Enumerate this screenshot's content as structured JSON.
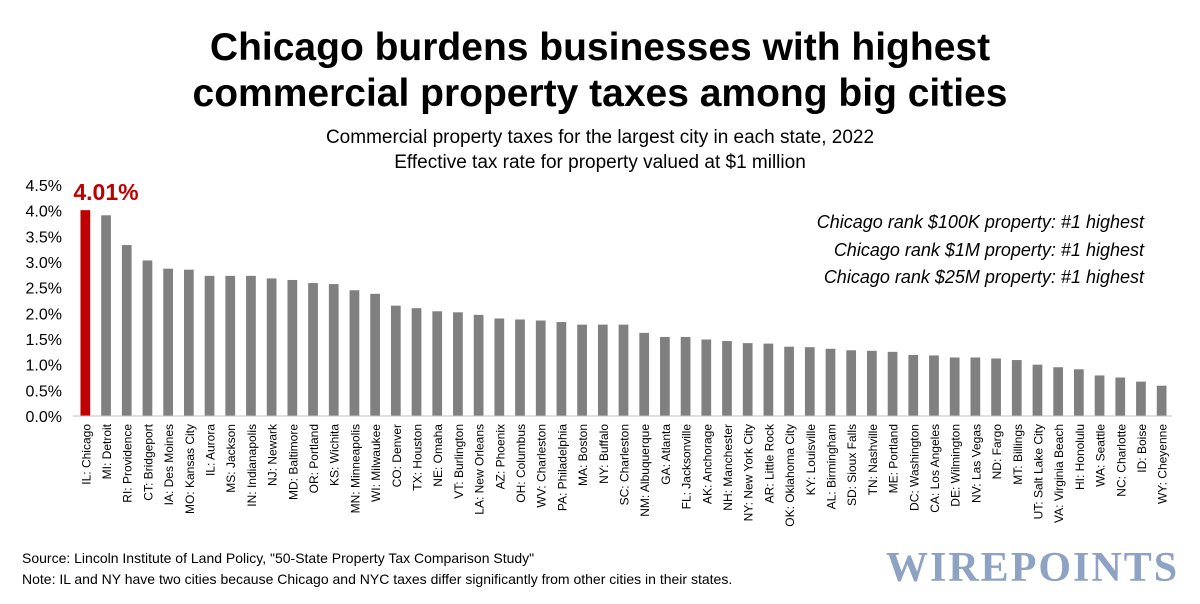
{
  "title_line1": "Chicago burdens businesses with highest",
  "title_line2": "commercial property taxes among big cities",
  "subtitle_line1": "Commercial property taxes for the largest city in each state, 2022",
  "subtitle_line2": "Effective tax rate for property valued at $1 million",
  "ranks": [
    "Chicago rank $100K property: #1 highest",
    "Chicago rank $1M property: #1 highest",
    "Chicago rank $25M property: #1 highest"
  ],
  "source": "Source: Lincoln Institute of Land Policy, \"50-State Property Tax Comparison Study\"",
  "note": "Note: IL and NY have two cities because Chicago and NYC taxes differ significantly from other cities in their states.",
  "logo": "WIREPOINTS",
  "chart_data": {
    "type": "bar",
    "ylim": [
      0,
      4.5
    ],
    "y_ticks": [
      "0.0%",
      "0.5%",
      "1.0%",
      "1.5%",
      "2.0%",
      "2.5%",
      "3.0%",
      "3.5%",
      "4.0%",
      "4.5%"
    ],
    "highlight_label": "4.01%",
    "highlight_color": "#c00000",
    "bar_color": "#808080",
    "grid": false,
    "categories": [
      "IL: Chicago",
      "MI: Detroit",
      "RI: Providence",
      "CT: Bridgeport",
      "IA: Des Moines",
      "MO: Kansas City",
      "IL: Aurora",
      "MS: Jackson",
      "IN: Indianapolis",
      "NJ: Newark",
      "MD: Baltimore",
      "OR: Portland",
      "KS: Wichita",
      "MN: Minneapolis",
      "WI: Milwaukee",
      "CO: Denver",
      "TX: Houston",
      "NE: Omaha",
      "VT: Burlington",
      "LA: New Orleans",
      "AZ: Phoenix",
      "OH: Columbus",
      "WV: Charleston",
      "PA: Philadelphia",
      "MA: Boston",
      "NY: Buffalo",
      "SC: Charleston",
      "NM: Albuquerque",
      "GA: Atlanta",
      "FL: Jacksonville",
      "AK: Anchorage",
      "NH: Manchester",
      "NY: New York City",
      "AR: Little Rock",
      "OK: Oklahoma City",
      "KY: Louisville",
      "AL: Birmingham",
      "SD: Sioux Falls",
      "TN: Nashville",
      "ME: Portland",
      "DC: Washington",
      "CA: Los Angeles",
      "DE: Wilmington",
      "NV: Las Vegas",
      "ND: Fargo",
      "MT: Billings",
      "UT: Salt Lake City",
      "VA: Virginia Beach",
      "HI: Honolulu",
      "WA: Seattle",
      "NC: Charlotte",
      "ID: Boise",
      "WY: Cheyenne"
    ],
    "values": [
      4.01,
      3.91,
      3.33,
      3.03,
      2.87,
      2.85,
      2.73,
      2.73,
      2.73,
      2.68,
      2.65,
      2.59,
      2.57,
      2.45,
      2.38,
      2.15,
      2.1,
      2.04,
      2.02,
      1.97,
      1.9,
      1.88,
      1.86,
      1.83,
      1.78,
      1.78,
      1.78,
      1.62,
      1.54,
      1.54,
      1.49,
      1.46,
      1.42,
      1.41,
      1.35,
      1.34,
      1.31,
      1.28,
      1.27,
      1.25,
      1.19,
      1.18,
      1.14,
      1.14,
      1.12,
      1.09,
      1.0,
      0.95,
      0.91,
      0.79,
      0.75,
      0.67,
      0.59
    ]
  }
}
